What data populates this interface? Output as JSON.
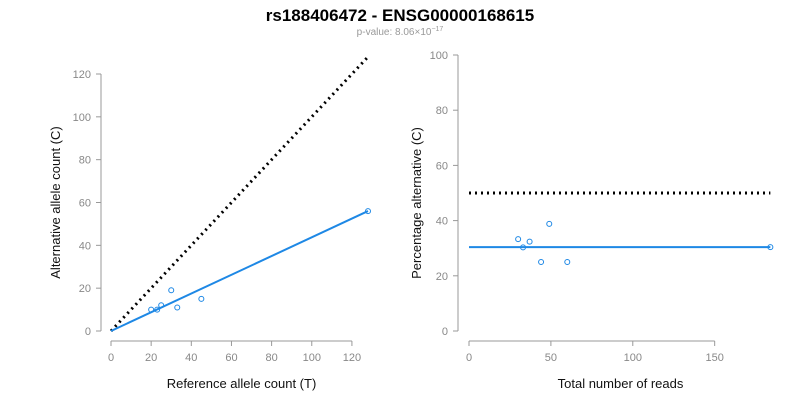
{
  "header": {
    "title": "rs188406472 - ENSG00000168615",
    "pvalue_prefix": "p-value: 8.06×10",
    "pvalue_exponent": "−17"
  },
  "colors": {
    "points": "#1e88e5",
    "fit_line": "#1e88e5",
    "reference_line": "#000000",
    "axis": "#999999",
    "tick_text": "#888888"
  },
  "chart_data": [
    {
      "type": "scatter",
      "xlabel": "Reference allele count (T)",
      "ylabel": "Alternative allele count (C)",
      "xlim": [
        0,
        130
      ],
      "ylim": [
        0,
        120
      ],
      "xticks": [
        0,
        20,
        40,
        60,
        80,
        100,
        120
      ],
      "yticks": [
        0,
        20,
        40,
        60,
        80,
        100,
        120
      ],
      "points": [
        {
          "x": 20,
          "y": 10
        },
        {
          "x": 23,
          "y": 10
        },
        {
          "x": 25,
          "y": 12
        },
        {
          "x": 30,
          "y": 19
        },
        {
          "x": 33,
          "y": 11
        },
        {
          "x": 45,
          "y": 15
        },
        {
          "x": 128,
          "y": 56
        }
      ],
      "fit_line": {
        "x1": 0,
        "y1": 0,
        "x2": 128,
        "y2": 56
      },
      "reference_line": {
        "x1": 0,
        "y1": 0,
        "x2": 128,
        "y2": 128,
        "style": "dotted"
      }
    },
    {
      "type": "scatter",
      "xlabel": "Total number of reads",
      "ylabel": "Percentage alternative (C)",
      "xlim": [
        0,
        185
      ],
      "ylim": [
        0,
        100
      ],
      "xticks": [
        0,
        50,
        100,
        150
      ],
      "yticks": [
        0,
        20,
        40,
        60,
        80,
        100
      ],
      "points": [
        {
          "x": 30,
          "y": 33.3
        },
        {
          "x": 33,
          "y": 30.3
        },
        {
          "x": 37,
          "y": 32.4
        },
        {
          "x": 44,
          "y": 25
        },
        {
          "x": 49,
          "y": 38.8
        },
        {
          "x": 60,
          "y": 25
        },
        {
          "x": 184,
          "y": 30.4
        }
      ],
      "fit_line": {
        "x1": 0,
        "y1": 30.4,
        "x2": 184,
        "y2": 30.4
      },
      "reference_line": {
        "x1": 0,
        "y1": 50,
        "x2": 184,
        "y2": 50,
        "style": "dotted"
      }
    }
  ]
}
